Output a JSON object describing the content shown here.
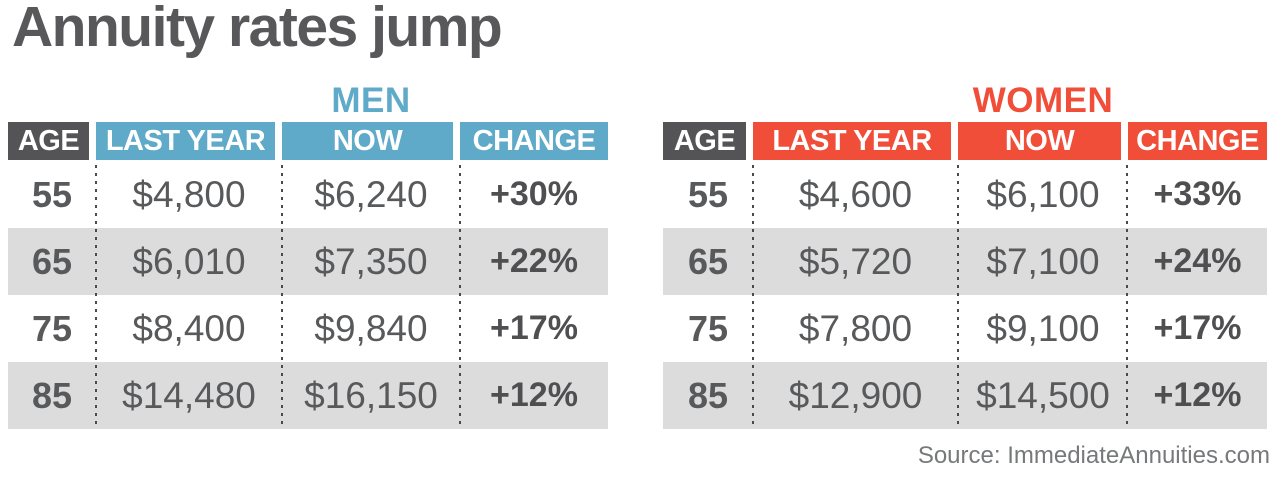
{
  "title": "Annuity rates jump",
  "source": "Source: ImmediateAnnuities.com",
  "colors": {
    "men_accent": "#5fa9c9",
    "women_accent": "#f04e38",
    "age_header_bg": "#545456",
    "row_stripe": "#dcdcdd",
    "body_text": "#58595b"
  },
  "chart_data": [
    {
      "type": "table",
      "group": "MEN",
      "columns": [
        "AGE",
        "LAST YEAR",
        "NOW",
        "CHANGE"
      ],
      "rows": [
        [
          "55",
          "$4,800",
          "$6,240",
          "+30%"
        ],
        [
          "65",
          "$6,010",
          "$7,350",
          "+22%"
        ],
        [
          "75",
          "$8,400",
          "$9,840",
          "+17%"
        ],
        [
          "85",
          "$14,480",
          "$16,150",
          "+12%"
        ]
      ]
    },
    {
      "type": "table",
      "group": "WOMEN",
      "columns": [
        "AGE",
        "LAST YEAR",
        "NOW",
        "CHANGE"
      ],
      "rows": [
        [
          "55",
          "$4,600",
          "$6,100",
          "+33%"
        ],
        [
          "65",
          "$5,720",
          "$7,100",
          "+24%"
        ],
        [
          "75",
          "$7,800",
          "$9,100",
          "+17%"
        ],
        [
          "85",
          "$12,900",
          "$14,500",
          "+12%"
        ]
      ]
    }
  ]
}
